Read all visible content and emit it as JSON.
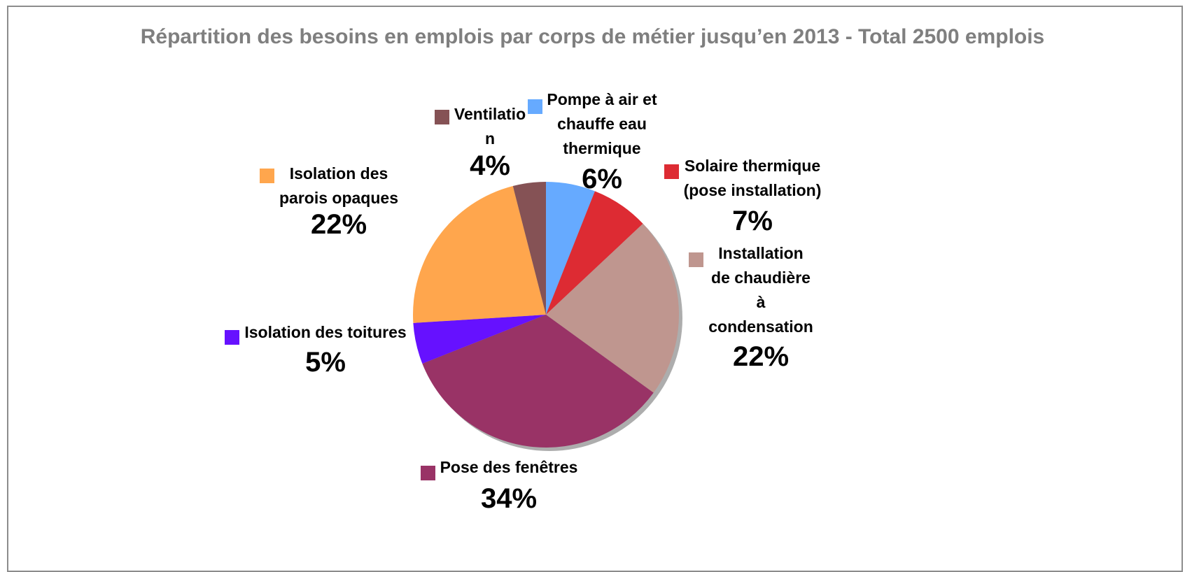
{
  "chart_data": {
    "type": "pie",
    "title": "Répartition des besoins en emplois par corps de métier jusqu’en 2013 - Total 2500 emplois",
    "categories": [
      "Pompe à air et\nchauffe eau\nthermique",
      "Solaire thermique\n(pose installation)",
      "Installation\nde chaudière\nà\ncondensation",
      "Pose des fenêtres",
      "Isolation des toitures",
      "Isolation des\nparois opaques",
      "Ventilatio\nn"
    ],
    "values": [
      6,
      7,
      22,
      34,
      5,
      22,
      4
    ],
    "value_labels": [
      "6%",
      "7%",
      "22%",
      "34%",
      "5%",
      "22%",
      "4%"
    ],
    "colors": [
      "#66aaff",
      "#dd2b33",
      "#bf968f",
      "#993366",
      "#6611ff",
      "#ffa64d",
      "#855255"
    ]
  }
}
